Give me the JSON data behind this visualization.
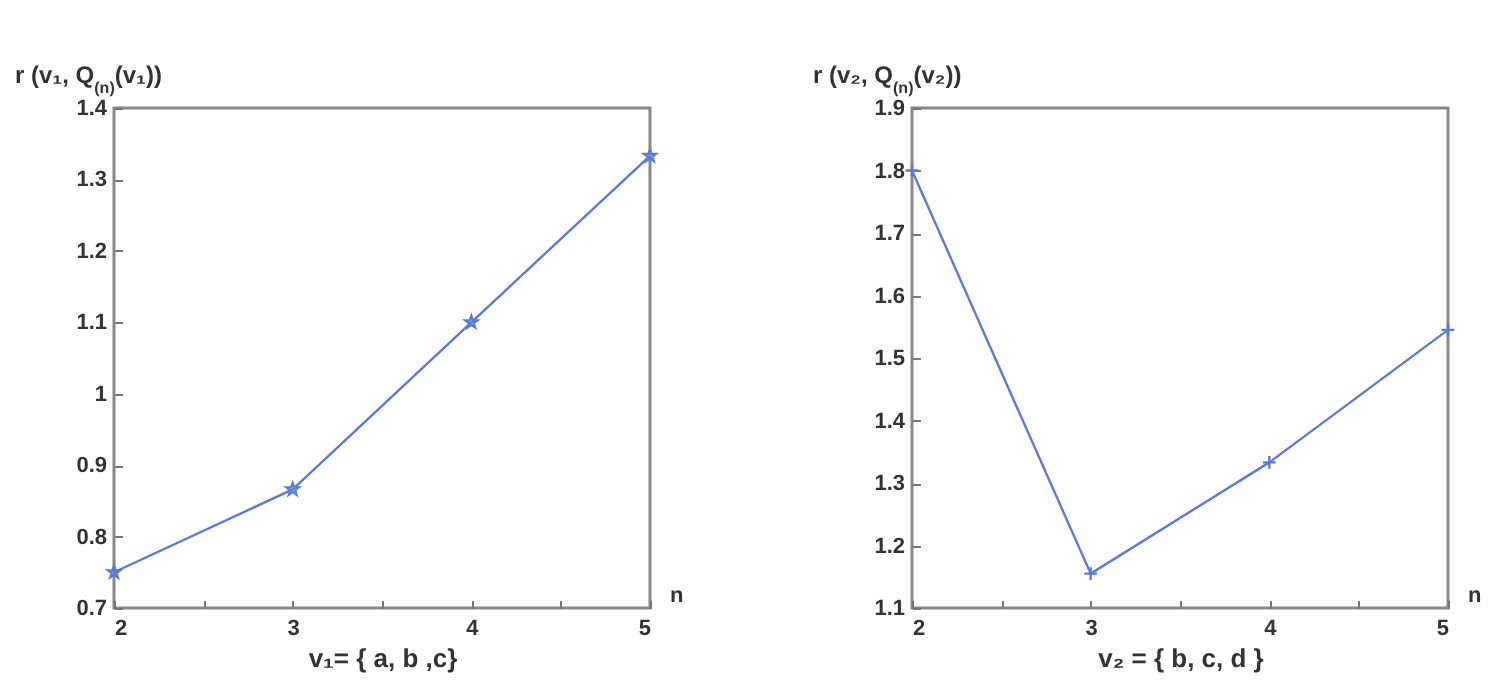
{
  "chart_data": [
    {
      "type": "line",
      "ylabel": "r (v₁, Q$_{(n)}$(v₁))",
      "xlabel": "v₁= { a, b ,c}",
      "annotations": [
        "n"
      ],
      "x": [
        2,
        3,
        4,
        5
      ],
      "series": [
        {
          "color": "#5b7bd5",
          "values": [
            0.75,
            0.866,
            1.1,
            1.333
          ]
        }
      ],
      "marker": "star",
      "xlim": [
        2,
        5
      ],
      "ylim": [
        0.7,
        1.4
      ],
      "xticks": [
        2,
        {
          "value": 2.5,
          "label": null
        },
        3,
        {
          "value": 3.5,
          "label": null
        },
        4,
        {
          "value": 4.5,
          "label": null
        },
        5
      ],
      "yticks": [
        0.7,
        0.8,
        0.9,
        1,
        1.1,
        1.2,
        1.3,
        1.4
      ],
      "grid": false
    },
    {
      "type": "line",
      "ylabel": "r (v₂, Q$_{(n)}$(v₂))",
      "xlabel": "v₂ = { b, c, d }",
      "annotations": [
        "n"
      ],
      "x": [
        2,
        3,
        4,
        5
      ],
      "series": [
        {
          "color": "#5b7bd5",
          "values": [
            1.8,
            1.155,
            1.333,
            1.545
          ]
        }
      ],
      "marker": "cross",
      "xlim": [
        2,
        5
      ],
      "ylim": [
        1.1,
        1.9
      ],
      "xticks": [
        2,
        {
          "value": 2.5,
          "label": null
        },
        3,
        {
          "value": 3.5,
          "label": null
        },
        4,
        {
          "value": 4.5,
          "label": null
        },
        5
      ],
      "yticks": [
        1.1,
        1.2,
        1.3,
        1.4,
        1.5,
        1.6,
        1.7,
        1.8,
        1.9
      ],
      "grid": false
    }
  ]
}
